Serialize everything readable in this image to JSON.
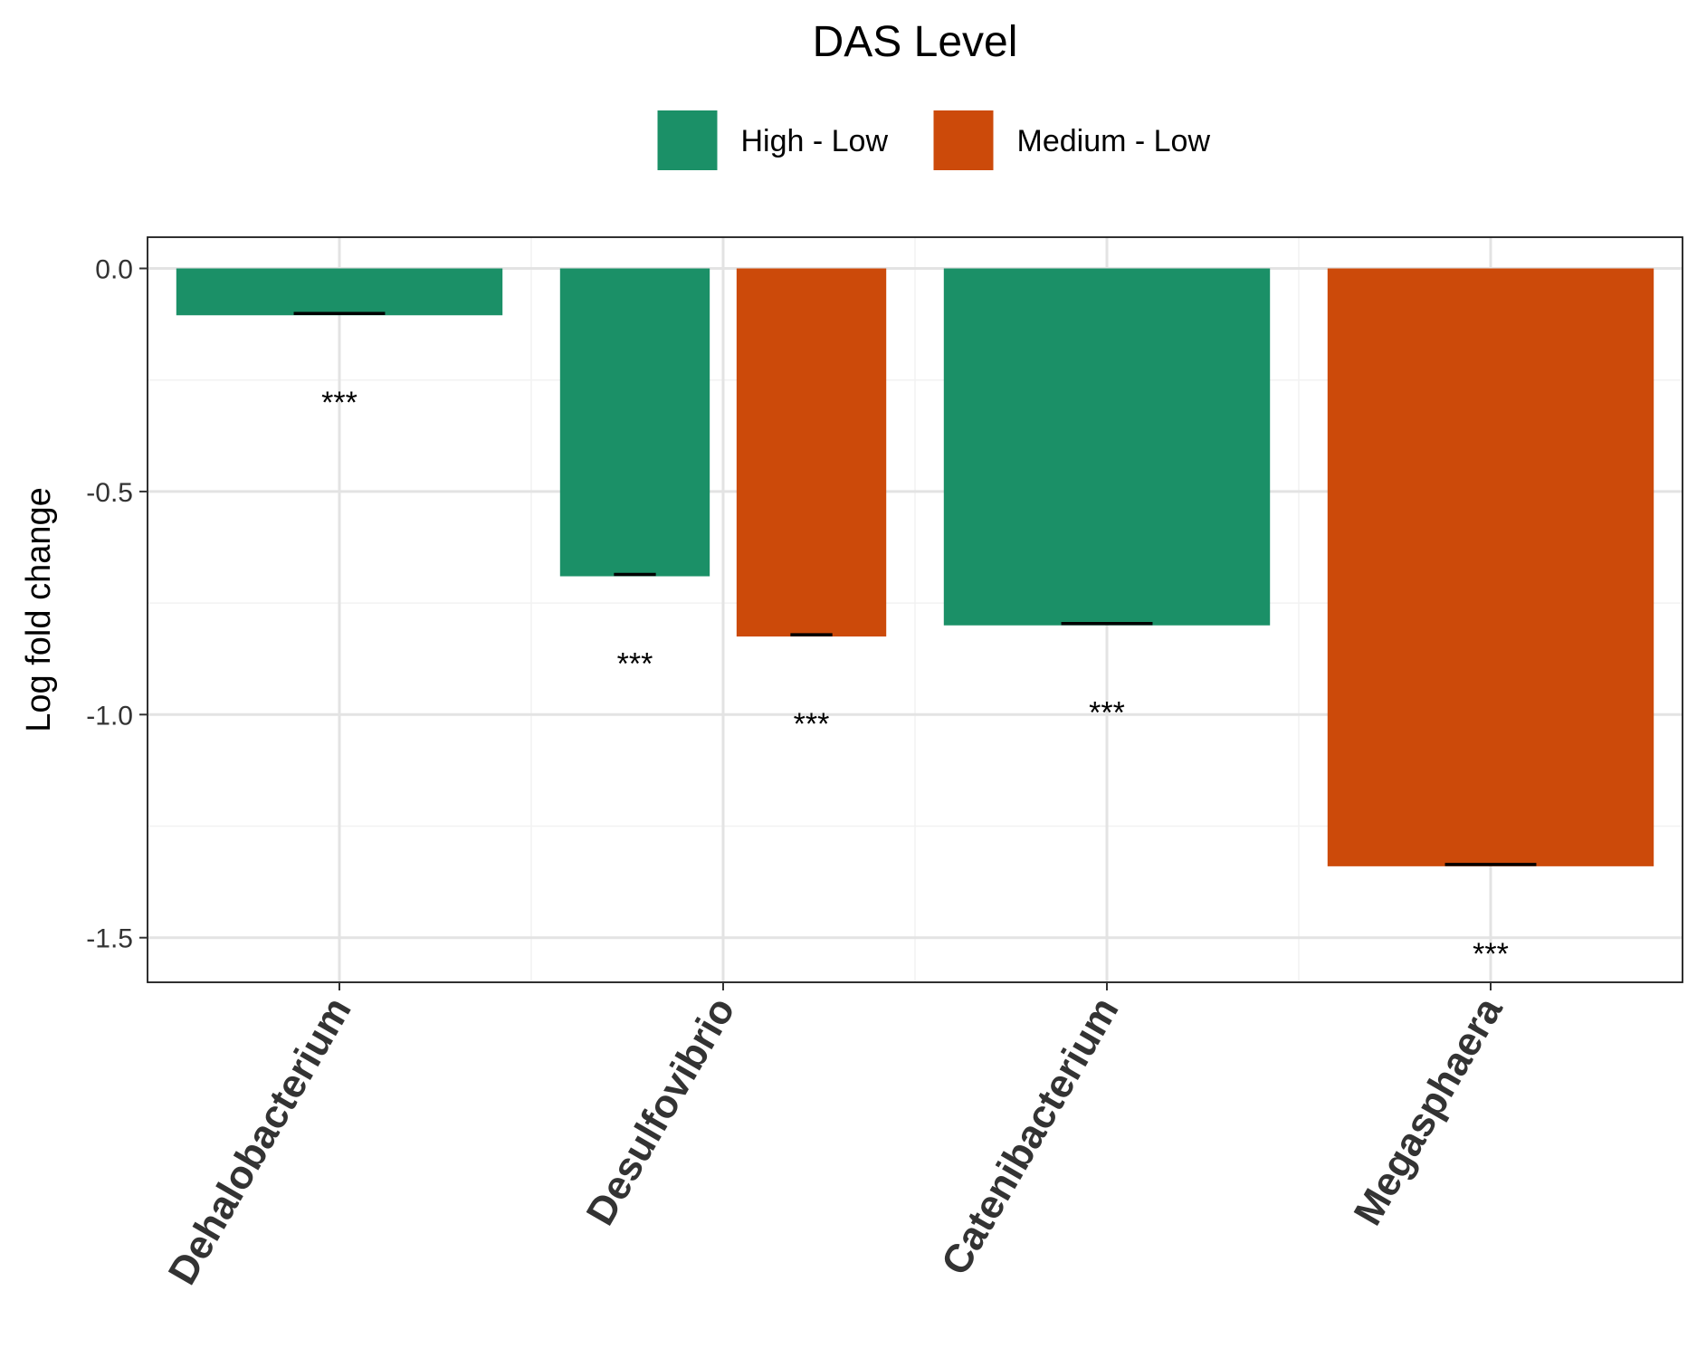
{
  "chart_data": {
    "type": "bar",
    "legend_title": "DAS Level",
    "legend_position": "top",
    "ylabel": "Log fold change",
    "xlabel": "",
    "categories": [
      "Dehalobacterium",
      "Desulfovibrio",
      "Catenibacterium",
      "Megasphaera"
    ],
    "ylim": [
      -1.6,
      0.07
    ],
    "yticks": [
      0.0,
      -0.5,
      -1.0,
      -1.5
    ],
    "ytick_labels": [
      "0.0",
      "-0.5",
      "-1.0",
      "-1.5"
    ],
    "grid": true,
    "series": [
      {
        "name": "High - Low",
        "color": "#1b9067",
        "values": [
          -0.105,
          -0.69,
          -0.8,
          null
        ]
      },
      {
        "name": "Medium - Low",
        "color": "#cc4a0a",
        "values": [
          null,
          -0.825,
          null,
          -1.34
        ]
      }
    ],
    "annotations": [
      {
        "category": "Dehalobacterium",
        "series": "High - Low",
        "text": "***"
      },
      {
        "category": "Desulfovibrio",
        "series": "High - Low",
        "text": "***"
      },
      {
        "category": "Desulfovibrio",
        "series": "Medium - Low",
        "text": "***"
      },
      {
        "category": "Catenibacterium",
        "series": "High - Low",
        "text": "***"
      },
      {
        "category": "Megasphaera",
        "series": "Medium - Low",
        "text": "***"
      }
    ]
  }
}
